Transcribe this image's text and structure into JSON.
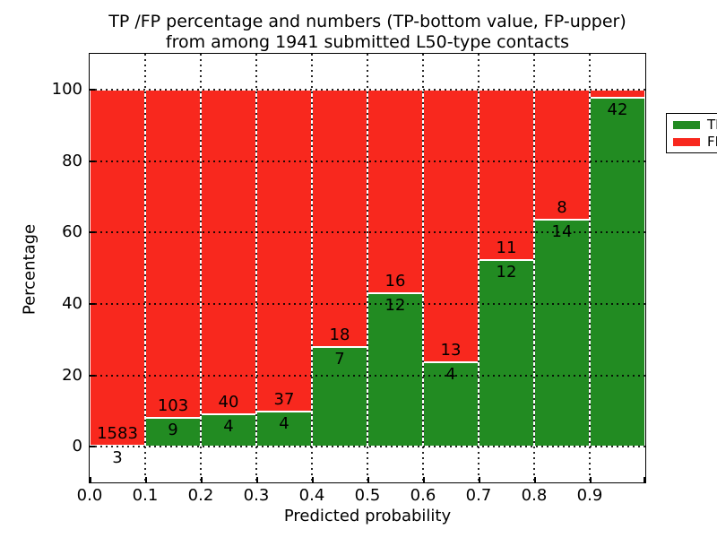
{
  "title": {
    "line1": "TP /FP percentage and numbers (TP-bottom value, FP-upper)",
    "line2": "from among 1941 submitted L50-type contacts"
  },
  "axes": {
    "xlabel": "Predicted probability",
    "ylabel": "Percentage",
    "x_tick_labels": [
      "0.0",
      "0.1",
      "0.2",
      "0.3",
      "0.4",
      "0.5",
      "0.6",
      "0.7",
      "0.8",
      "0.9"
    ],
    "y_tick_labels": [
      "0",
      "20",
      "40",
      "60",
      "80",
      "100"
    ],
    "y_tick_values": [
      0,
      20,
      40,
      60,
      80,
      100
    ],
    "xlim": [
      0.0,
      1.0
    ],
    "ylim": [
      -10,
      110
    ],
    "grid_style": "dotted"
  },
  "legend": {
    "position": "upper-right",
    "items": [
      {
        "label": "TP",
        "color": "#228b22"
      },
      {
        "label": "FP",
        "color": "#f8281e"
      }
    ]
  },
  "colors": {
    "tp": "#228b22",
    "fp": "#f8281e",
    "bar_edge": "#ffffff",
    "grid": "#000000",
    "background": "#ffffff"
  },
  "chart_data": {
    "type": "bar",
    "stacked": true,
    "normalized": "each bar stacked to 100 percent",
    "title": "TP /FP percentage and numbers (TP-bottom value, FP-upper) from among 1941 submitted L50-type contacts",
    "xlabel": "Predicted probability",
    "ylabel": "Percentage",
    "total_submitted": 1941,
    "categories": [
      "0.0-0.1",
      "0.1-0.2",
      "0.2-0.3",
      "0.3-0.4",
      "0.4-0.5",
      "0.5-0.6",
      "0.6-0.7",
      "0.7-0.8",
      "0.8-0.9",
      "0.9-1.0"
    ],
    "series": [
      {
        "name": "TP",
        "values": [
          3,
          9,
          4,
          4,
          7,
          12,
          4,
          12,
          14,
          42
        ]
      },
      {
        "name": "FP",
        "values": [
          1583,
          103,
          40,
          37,
          18,
          16,
          13,
          11,
          8,
          1
        ]
      }
    ],
    "bins": [
      {
        "x0": 0.0,
        "x1": 0.1,
        "tp": 3,
        "fp": 1583,
        "tp_label": "3",
        "fp_label": "1583"
      },
      {
        "x0": 0.1,
        "x1": 0.2,
        "tp": 9,
        "fp": 103,
        "tp_label": "9",
        "fp_label": "103"
      },
      {
        "x0": 0.2,
        "x1": 0.3,
        "tp": 4,
        "fp": 40,
        "tp_label": "4",
        "fp_label": "40"
      },
      {
        "x0": 0.3,
        "x1": 0.4,
        "tp": 4,
        "fp": 37,
        "tp_label": "4",
        "fp_label": "37"
      },
      {
        "x0": 0.4,
        "x1": 0.5,
        "tp": 7,
        "fp": 18,
        "tp_label": "7",
        "fp_label": "18"
      },
      {
        "x0": 0.5,
        "x1": 0.6,
        "tp": 12,
        "fp": 16,
        "tp_label": "12",
        "fp_label": "16"
      },
      {
        "x0": 0.6,
        "x1": 0.7,
        "tp": 4,
        "fp": 13,
        "tp_label": "4",
        "fp_label": "13"
      },
      {
        "x0": 0.7,
        "x1": 0.8,
        "tp": 12,
        "fp": 11,
        "tp_label": "12",
        "fp_label": "11"
      },
      {
        "x0": 0.8,
        "x1": 0.9,
        "tp": 14,
        "fp": 8,
        "tp_label": "14",
        "fp_label": "8"
      },
      {
        "x0": 0.9,
        "x1": 1.0,
        "tp": 42,
        "fp": 1,
        "tp_label": "42",
        "fp_label": ""
      }
    ],
    "ylim": [
      -10,
      110
    ],
    "grid": true,
    "legend_position": "upper right"
  }
}
